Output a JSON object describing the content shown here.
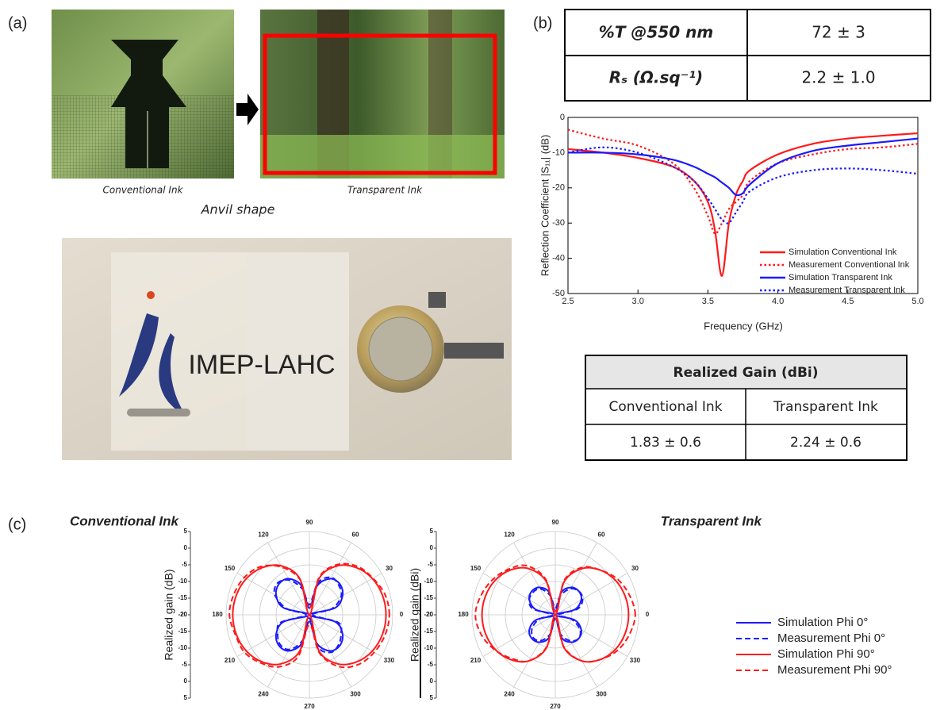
{
  "panel_labels": [
    "(a)",
    "(b)",
    "(c)"
  ],
  "photo": {
    "left_caption": "Conventional Ink",
    "right_caption": "Transparent Ink",
    "shape_caption": "Anvil shape",
    "logo_text": "IMEP-LAHC"
  },
  "properties_table": {
    "rows": [
      [
        "%T @550 nm",
        "72 ± 3"
      ],
      [
        "Rₛ (Ω.sq⁻¹)",
        "2.2 ± 1.0"
      ]
    ]
  },
  "gain_table": {
    "title": "Realized Gain (dBi)",
    "columns": [
      "Conventional Ink",
      "Transparent Ink"
    ],
    "values": [
      "1.83 ± 0.6",
      "2.24 ± 0.6"
    ]
  },
  "chart_data": [
    {
      "type": "line",
      "xlabel": "Frequency (GHz)",
      "ylabel": "Reflection Coefficient |S₁₁| (dB)",
      "x": [
        2.5,
        2.75,
        3.0,
        3.25,
        3.4,
        3.5,
        3.55,
        3.6,
        3.65,
        3.7,
        3.75,
        3.8,
        4.0,
        4.25,
        4.5,
        4.75,
        5.0
      ],
      "xlim": [
        2.5,
        5.0
      ],
      "xticks": [
        2.5,
        {
          "value": 3,
          "label": "3.0"
        },
        3.5,
        {
          "value": 4,
          "label": "4.0"
        },
        4.5,
        {
          "value": 5,
          "label": "5.0"
        }
      ],
      "ylim": [
        -50,
        0
      ],
      "yticks": [
        0,
        -10,
        -20,
        -30,
        -40,
        -50
      ],
      "series": [
        {
          "name": "Simulation Conventional Ink",
          "color": "#ff1a1a",
          "dash": "solid",
          "values": [
            -9,
            -10,
            -11.5,
            -14,
            -18,
            -24,
            -32,
            -45,
            -30,
            -22,
            -18,
            -15,
            -10.5,
            -7.5,
            -6,
            -5.2,
            -4.5
          ]
        },
        {
          "name": "Measurement Conventional Ink",
          "color": "#ff1a1a",
          "dash": "dotted",
          "values": [
            -3.5,
            -6,
            -8,
            -13,
            -20,
            -28,
            -33,
            -30,
            -26,
            -24,
            -22,
            -18,
            -13,
            -10.5,
            -9,
            -8.5,
            -7.5
          ]
        },
        {
          "name": "Simulation Transparent Ink",
          "color": "#1a1aff",
          "dash": "solid",
          "values": [
            -10,
            -10,
            -10.5,
            -12,
            -14,
            -16,
            -17,
            -18.5,
            -20,
            -22,
            -21.5,
            -19,
            -13,
            -9.5,
            -8,
            -7,
            -6
          ]
        },
        {
          "name": "Measurement Transparent Ink",
          "color": "#1a1aff",
          "dash": "dotted",
          "values": [
            -10,
            -8.5,
            -10,
            -14,
            -18,
            -23,
            -26,
            -29,
            -30,
            -27,
            -24,
            -21,
            -17,
            -15,
            -14.5,
            -15,
            -16
          ]
        }
      ]
    },
    {
      "type": "polar",
      "theta": [
        0,
        15,
        30,
        45,
        60,
        75,
        90,
        105,
        120,
        135,
        150,
        165,
        180,
        195,
        210,
        225,
        240,
        255,
        270,
        285,
        300,
        315,
        330,
        345
      ],
      "angle_ticks": [
        0,
        30,
        60,
        90,
        120,
        150,
        180,
        210,
        240,
        270,
        300,
        330
      ],
      "rlim": [
        -20,
        5
      ],
      "rticks": [
        5,
        0,
        -5,
        -10,
        -15,
        -20
      ],
      "legend": [
        {
          "name": "Simulation Phi 0°",
          "color": "#1a1aff",
          "dash": "solid"
        },
        {
          "name": "Measurement Phi 0°",
          "color": "#1a1aff",
          "dash": "dashed"
        },
        {
          "name": "Simulation Phi 90°",
          "color": "#ff1a1a",
          "dash": "solid"
        },
        {
          "name": "Measurement Phi 90°",
          "color": "#ff1a1a",
          "dash": "dashed"
        }
      ],
      "panels": [
        {
          "title": "Conventional Ink",
          "ylabel": "Realized gain (dB)",
          "series": [
            {
              "values": [
                -20,
                -12,
                -8.5,
                -7,
                -7.5,
                -11,
                -18,
                -11,
                -7.5,
                -7,
                -8.5,
                -12,
                -20,
                -12,
                -8.5,
                -7,
                -7.5,
                -11,
                -18,
                -11,
                -7.5,
                -7,
                -8.5,
                -12
              ]
            },
            {
              "values": [
                -19,
                -13,
                -9,
                -7.5,
                -7,
                -10,
                -17,
                -12,
                -8,
                -6.5,
                -8,
                -13,
                -19,
                -11,
                -9,
                -7.5,
                -8,
                -12,
                -19,
                -10,
                -7,
                -7.5,
                -9,
                -11
              ]
            },
            {
              "values": [
                3,
                2.7,
                1.8,
                0,
                -3,
                -8.7,
                -20,
                -8.7,
                -3,
                0,
                1.8,
                2.7,
                3,
                2.7,
                1.8,
                0,
                -3,
                -8.7,
                -20,
                -8.7,
                -3,
                0,
                1.8,
                2.7
              ]
            },
            {
              "values": [
                4,
                3.5,
                2,
                0.5,
                -2.5,
                -8,
                -18,
                -9,
                -3.5,
                0.5,
                2.5,
                3.5,
                4,
                3,
                2.5,
                0.5,
                -2,
                -7,
                -17,
                -8,
                -2,
                1,
                2.5,
                3.5
              ]
            }
          ]
        },
        {
          "title": "Transparent Ink",
          "ylabel": "Realized gain (dBi)",
          "series": [
            {
              "values": [
                -20,
                -14,
                -11,
                -10,
                -10.5,
                -13,
                -19,
                -13,
                -10.5,
                -10,
                -11,
                -14,
                -20,
                -14,
                -11,
                -10,
                -10.5,
                -13,
                -19,
                -13,
                -10.5,
                -10,
                -11,
                -14
              ]
            },
            {
              "values": [
                -19,
                -13,
                -10.5,
                -10,
                -11,
                -14,
                -18,
                -14,
                -11,
                -10.5,
                -11,
                -13,
                -19,
                -15,
                -12,
                -10.5,
                -11,
                -14,
                -19,
                -14,
                -11,
                -10,
                -11.5,
                -15
              ]
            },
            {
              "values": [
                2,
                1.7,
                0.8,
                -1,
                -4,
                -9.7,
                -20,
                -9.7,
                -4,
                -1,
                0.8,
                1.7,
                2,
                1.7,
                0.8,
                -1,
                -4,
                -9.7,
                -20,
                -9.7,
                -4,
                -1,
                0.8,
                1.7
              ]
            },
            {
              "values": [
                4,
                3,
                1.5,
                -1,
                -3.5,
                -9,
                -19,
                -9,
                -3,
                -0.5,
                1.5,
                3,
                4,
                3,
                1,
                -1.5,
                -4,
                -10,
                -19,
                -10,
                -4,
                -1,
                1.5,
                3
              ]
            }
          ]
        }
      ]
    }
  ]
}
